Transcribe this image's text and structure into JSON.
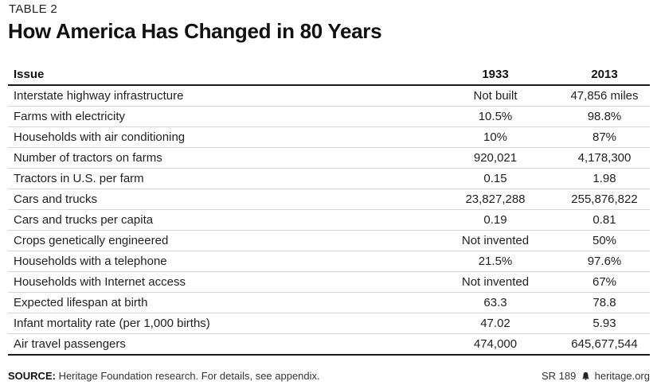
{
  "header": {
    "table_label": "TABLE 2",
    "title": "How America Has Changed in 80 Years"
  },
  "table": {
    "columns": [
      "Issue",
      "1933",
      "2013"
    ],
    "rows": [
      [
        "Interstate highway infrastructure",
        "Not built",
        "47,856 miles"
      ],
      [
        "Farms with electricity",
        "10.5%",
        "98.8%"
      ],
      [
        "Households with air conditioning",
        "10%",
        "87%"
      ],
      [
        "Number of tractors on farms",
        "920,021",
        "4,178,300"
      ],
      [
        "Tractors in U.S. per farm",
        "0.15",
        "1.98"
      ],
      [
        "Cars and trucks",
        "23,827,288",
        "255,876,822"
      ],
      [
        "Cars and trucks per capita",
        "0.19",
        "0.81"
      ],
      [
        "Crops genetically engineered",
        "Not invented",
        "50%"
      ],
      [
        "Households with a telephone",
        "21.5%",
        "97.6%"
      ],
      [
        "Households with Internet access",
        "Not invented",
        "67%"
      ],
      [
        "Expected lifespan at birth",
        "63.3",
        "78.8"
      ],
      [
        "Infant mortality rate (per 1,000 births)",
        "47.02",
        "5.93"
      ],
      [
        "Air travel passengers",
        "474,000",
        "645,677,544"
      ]
    ]
  },
  "footer": {
    "source_label": "SOURCE:",
    "source_text": " Heritage Foundation research. For details, see appendix.",
    "report_id": "SR 189",
    "site": "heritage.org",
    "logo_icon": "liberty-bell-icon"
  }
}
